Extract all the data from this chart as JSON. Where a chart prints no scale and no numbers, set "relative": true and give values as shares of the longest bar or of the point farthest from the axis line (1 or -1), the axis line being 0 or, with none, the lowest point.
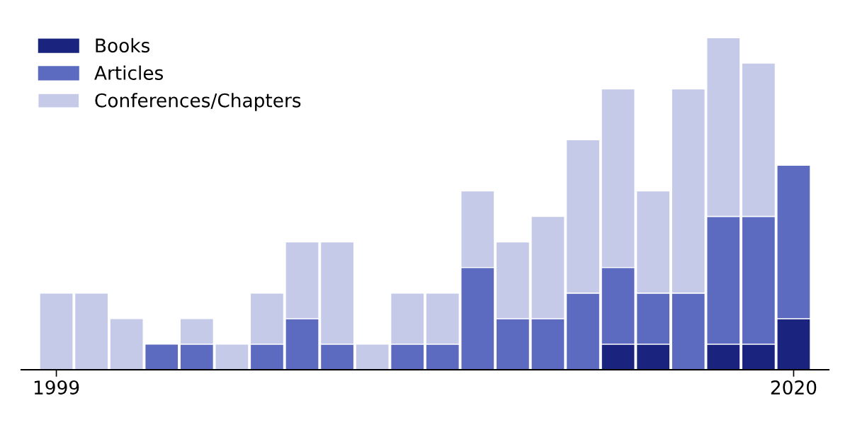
{
  "chart_data": {
    "type": "bar",
    "stacked": true,
    "relative": true,
    "x": [
      1999,
      2000,
      2001,
      2002,
      2003,
      2004,
      2005,
      2006,
      2007,
      2008,
      2009,
      2010,
      2011,
      2012,
      2013,
      2014,
      2015,
      2016,
      2017,
      2018,
      2019,
      2020
    ],
    "xlim": [
      1998,
      2021
    ],
    "xticks": [
      1999,
      2020
    ],
    "series": [
      {
        "name": "Books",
        "color": "#1a237e",
        "values": [
          0,
          0,
          0,
          0,
          0,
          0,
          0,
          0,
          0,
          0,
          0,
          0,
          0,
          0,
          0,
          0,
          0.077,
          0.077,
          0,
          0.077,
          0.077,
          0.154
        ]
      },
      {
        "name": "Articles",
        "color": "#5c6bc0",
        "values": [
          0,
          0,
          0,
          0.077,
          0.077,
          0,
          0.077,
          0.154,
          0.077,
          0,
          0.077,
          0.077,
          0.308,
          0.154,
          0.154,
          0.231,
          0.231,
          0.154,
          0.231,
          0.385,
          0.385,
          0.462
        ]
      },
      {
        "name": "Conferences/Chapters",
        "color": "#c5cae9",
        "values": [
          0.231,
          0.231,
          0.154,
          0,
          0.077,
          0.077,
          0.154,
          0.231,
          0.308,
          0.077,
          0.154,
          0.154,
          0.231,
          0.231,
          0.308,
          0.462,
          0.538,
          0.308,
          0.615,
          0.538,
          0.462,
          0
        ]
      }
    ],
    "legend": "top left",
    "grid": false
  }
}
